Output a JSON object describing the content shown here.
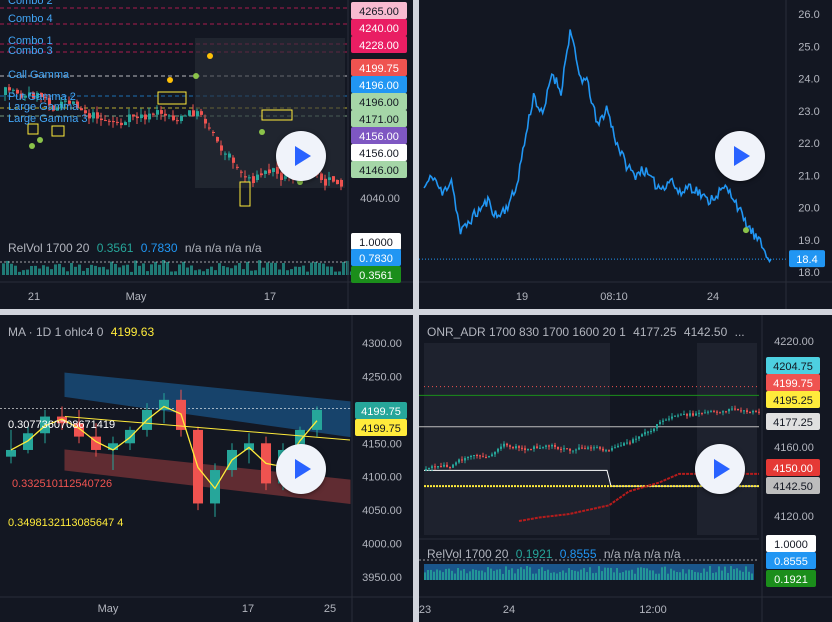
{
  "colors": {
    "bg": "#131722",
    "up": "#26a69a",
    "down": "#ef5350",
    "blue": "#2196f3",
    "yellow": "#ffeb3b",
    "grid": "#1e222d"
  },
  "panel1": {
    "combo_labels": [
      "Combo 2",
      "Combo 4",
      "Combo 1",
      "Combo 3",
      "Call Gamma",
      "Put Gamma 2",
      "Large Gamma",
      "Large Gamma 3"
    ],
    "price_labels": [
      {
        "text": "4265.00",
        "bg": "#f8bbd0",
        "fg": "#131722"
      },
      {
        "text": "4240.00",
        "bg": "#e91e63",
        "fg": "#ffffff"
      },
      {
        "text": "4228.00",
        "bg": "#e91e63",
        "fg": "#ffffff"
      },
      {
        "text": "4199.75",
        "bg": "#ef5350",
        "fg": "#ffffff"
      },
      {
        "text": "4196.00",
        "bg": "#2196f3",
        "fg": "#ffffff"
      },
      {
        "text": "4196.00",
        "bg": "#a5d6a7",
        "fg": "#131722"
      },
      {
        "text": "4171.00",
        "bg": "#a5d6a7",
        "fg": "#131722"
      },
      {
        "text": "4156.00",
        "bg": "#7e57c2",
        "fg": "#ffffff"
      },
      {
        "text": "4156.00",
        "bg": "#ffffff",
        "fg": "#131722"
      },
      {
        "text": "4146.00",
        "bg": "#a5d6a7",
        "fg": "#131722"
      }
    ],
    "axis_tick": "4040.00",
    "x_ticks": [
      "21",
      "May",
      "17"
    ],
    "relvol": {
      "name": "RelVol 1700 20",
      "v1": "0.3561",
      "v2": "0.7830",
      "na": "n/a  n/a  n/a  n/a"
    },
    "relvol_labels": [
      {
        "text": "1.0000",
        "bg": "#ffffff",
        "fg": "#131722"
      },
      {
        "text": "0.7830",
        "bg": "#2196f3",
        "fg": "#ffffff"
      },
      {
        "text": "0.3561",
        "bg": "#1b8e1b",
        "fg": "#ffffff"
      }
    ]
  },
  "panel2": {
    "y_ticks": [
      "26.0",
      "25.0",
      "24.0",
      "23.0",
      "22.0",
      "21.0",
      "20.0",
      "19.0",
      "18.0"
    ],
    "x_ticks": [
      "19",
      "08:10",
      "24"
    ],
    "last_label": "18.4",
    "line_color": "#2196f3"
  },
  "panel3": {
    "legend": {
      "name": "MA · 1D 1 ohlc4 0",
      "value": "4199.63"
    },
    "y_ticks": [
      "4300.00",
      "4250.00",
      "4200.00",
      "4150.00",
      "4100.00",
      "4050.00",
      "4000.00",
      "3950.00"
    ],
    "x_ticks": [
      "May",
      "17",
      "25"
    ],
    "annotations": [
      {
        "text": "0.3077360708671419",
        "color": "#ffffff"
      },
      {
        "text": "0.332510112540726",
        "color": "#ef5350"
      },
      {
        "text": "0.3498132113085647 4",
        "color": "#ffeb3b"
      }
    ],
    "price_labels": [
      {
        "text": "4199.75",
        "bg": "#26a69a",
        "fg": "#ffffff"
      },
      {
        "text": "4199.75",
        "bg": "#ffeb3b",
        "fg": "#131722"
      }
    ]
  },
  "panel4": {
    "legend": {
      "name": "ONR_ADR 1700 830 1700 1600 20 1",
      "v1": "4177.25",
      "v2": "4142.50",
      "more": "..."
    },
    "y_ticks": [
      "4220.00",
      "4160.00",
      "4140.00",
      "4120.00"
    ],
    "price_labels": [
      {
        "text": "4204.75",
        "bg": "#4dd0e1",
        "fg": "#131722"
      },
      {
        "text": "4199.75",
        "bg": "#ef5350",
        "fg": "#ffffff"
      },
      {
        "text": "4195.25",
        "bg": "#ffeb3b",
        "fg": "#131722"
      },
      {
        "text": "4177.25",
        "bg": "#e0e0e0",
        "fg": "#131722"
      },
      {
        "text": "4150.00",
        "bg": "#e53935",
        "fg": "#ffffff"
      },
      {
        "text": "4142.50",
        "bg": "#bdbdbd",
        "fg": "#131722"
      }
    ],
    "x_ticks": [
      "23",
      "24",
      "12:00"
    ],
    "relvol": {
      "name": "RelVol 1700 20",
      "v1": "0.1921",
      "v2": "0.8555",
      "na": "n/a  n/a  n/a  n/a"
    },
    "relvol_labels": [
      {
        "text": "1.0000",
        "bg": "#ffffff",
        "fg": "#131722"
      },
      {
        "text": "0.8555",
        "bg": "#2196f3",
        "fg": "#ffffff"
      },
      {
        "text": "0.1921",
        "bg": "#1b8e1b",
        "fg": "#ffffff"
      }
    ]
  },
  "chart_data": [
    {
      "type": "line",
      "x_ticks": [
        "19",
        "08:10",
        "24"
      ],
      "ylim": [
        18.0,
        26.0
      ],
      "series": [
        {
          "values": [
            20.6,
            21.0,
            20.4,
            20.9,
            19.2,
            19.6,
            19.9,
            20.2,
            19.7,
            20.0,
            20.5,
            22.0,
            23.5,
            22.8,
            24.2,
            23.6,
            25.5,
            24.1,
            23.8,
            22.5,
            23.1,
            22.1,
            21.4,
            21.0,
            21.2,
            20.8,
            20.6,
            20.9,
            20.4,
            20.7,
            20.5,
            20.2,
            20.4,
            20.6,
            20.3,
            19.6,
            19.2,
            18.8,
            18.4
          ]
        }
      ],
      "last_value": 18.4
    },
    {
      "type": "bar",
      "title": "MA · 1D 1 ohlc4 0",
      "x_ticks": [
        "May",
        "17",
        "25"
      ],
      "ylim": [
        3950,
        4300
      ],
      "ohlc": [
        [
          4130,
          4170,
          4120,
          4140
        ],
        [
          4140,
          4175,
          4135,
          4165
        ],
        [
          4165,
          4200,
          4150,
          4190
        ],
        [
          4190,
          4205,
          4170,
          4180
        ],
        [
          4180,
          4200,
          4150,
          4160
        ],
        [
          4160,
          4180,
          4130,
          4140
        ],
        [
          4140,
          4160,
          4110,
          4150
        ],
        [
          4150,
          4175,
          4140,
          4170
        ],
        [
          4170,
          4210,
          4160,
          4200
        ],
        [
          4200,
          4225,
          4180,
          4215
        ],
        [
          4215,
          4230,
          4160,
          4170
        ],
        [
          4170,
          4175,
          4050,
          4060
        ],
        [
          4060,
          4120,
          4040,
          4110
        ],
        [
          4110,
          4150,
          4100,
          4140
        ],
        [
          4140,
          4165,
          4120,
          4150
        ],
        [
          4150,
          4160,
          4080,
          4090
        ],
        [
          4090,
          4150,
          4080,
          4140
        ],
        [
          4140,
          4175,
          4130,
          4170
        ],
        [
          4170,
          4205,
          4160,
          4200
        ]
      ]
    },
    {
      "type": "bar",
      "title": "ONR_ADR 1700 830 1700 1600 20 1",
      "x_ticks": [
        "23",
        "24",
        "12:00"
      ],
      "ylim": [
        4115,
        4225
      ]
    }
  ]
}
